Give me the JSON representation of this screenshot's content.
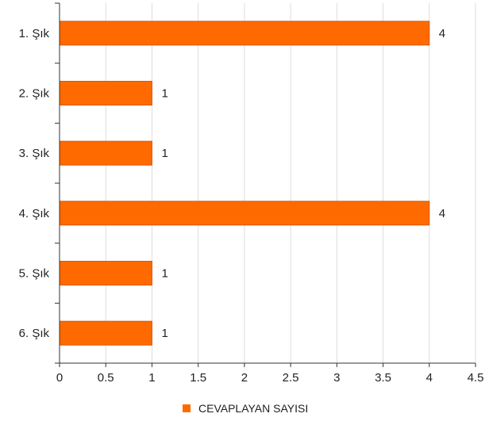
{
  "chart_data": {
    "type": "bar",
    "orientation": "horizontal",
    "categories": [
      "1. Şık",
      "2. Şık",
      "3. Şık",
      "4. Şık",
      "5. Şık",
      "6. Şık"
    ],
    "series": [
      {
        "name": "CEVAPLAYAN SAYISI",
        "values": [
          4,
          1,
          1,
          4,
          1,
          1
        ],
        "color": "#ff6a00"
      }
    ],
    "x_ticks": [
      "0",
      "0.5",
      "1",
      "1.5",
      "2",
      "2.5",
      "3",
      "3.5",
      "4",
      "4.5"
    ],
    "xlim": [
      0,
      4.5
    ],
    "grid": true,
    "data_labels": true,
    "legend_position": "bottom-center",
    "bar_stroke_color": "#d9560a",
    "grid_color": "#dddddd",
    "axis_color": "#333333"
  }
}
